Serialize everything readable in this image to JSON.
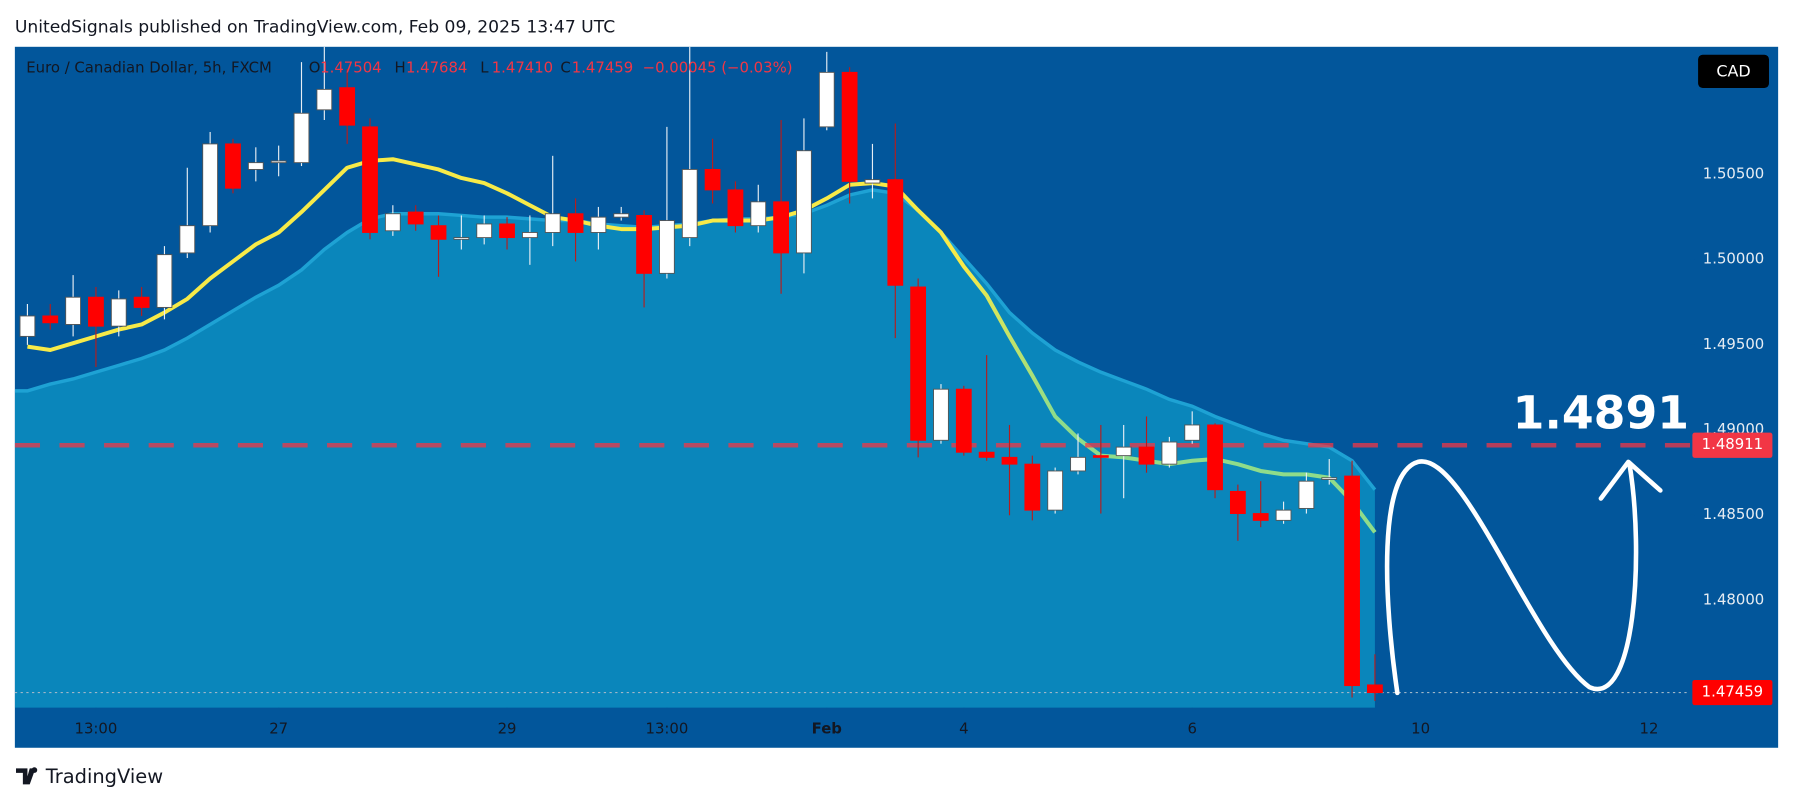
{
  "page": {
    "byline": "UnitedSignals published on TradingView.com, Feb 09, 2025 13:47 UTC",
    "brand": "TradingView"
  },
  "chart_data": {
    "type": "candlestick",
    "legend": {
      "symbol": "Euro / Canadian Dollar, 5h, FXCM",
      "fields": [
        {
          "key": "O",
          "value": "1.47504"
        },
        {
          "key": "H",
          "value": "1.47684"
        },
        {
          "key": "L",
          "value": "1.47410"
        },
        {
          "key": "C",
          "value": "1.47459"
        }
      ],
      "change": "−0.00045 (−0.03%)"
    },
    "currency": "CAD",
    "annotation": "1.4891",
    "level": {
      "value": 1.48911,
      "label": "1.48911"
    },
    "last_price": {
      "value": 1.47459,
      "label": "1.47459"
    },
    "up_color": "#ffffff",
    "down_color": "#ff0000",
    "ohlc": [
      [
        1.4955,
        1.4974,
        1.495,
        1.4967
      ],
      [
        1.4967,
        1.4974,
        1.4959,
        1.4963
      ],
      [
        1.4962,
        1.4991,
        1.4955,
        1.4978
      ],
      [
        1.4978,
        1.4984,
        1.4937,
        1.4961
      ],
      [
        1.4961,
        1.4982,
        1.4955,
        1.4977
      ],
      [
        1.4978,
        1.4984,
        1.4967,
        1.4972
      ],
      [
        1.4972,
        1.5008,
        1.4965,
        1.5003
      ],
      [
        1.5004,
        1.5054,
        1.5001,
        1.502
      ],
      [
        1.502,
        1.5075,
        1.5016,
        1.5068
      ],
      [
        1.5068,
        1.5071,
        1.5039,
        1.5042
      ],
      [
        1.5053,
        1.5066,
        1.5046,
        1.5057
      ],
      [
        1.5057,
        1.5067,
        1.5049,
        1.5058
      ],
      [
        1.5057,
        1.5116,
        1.5055,
        1.5086
      ],
      [
        1.5088,
        1.5125,
        1.5082,
        1.51
      ],
      [
        1.5101,
        1.5112,
        1.5068,
        1.5079
      ],
      [
        1.5078,
        1.5083,
        1.5012,
        1.5016
      ],
      [
        1.5017,
        1.5032,
        1.5014,
        1.5027
      ],
      [
        1.5028,
        1.5032,
        1.5017,
        1.5021
      ],
      [
        1.502,
        1.5026,
        1.499,
        1.5012
      ],
      [
        1.5012,
        1.5026,
        1.5006,
        1.5013
      ],
      [
        1.5013,
        1.5026,
        1.5009,
        1.5021
      ],
      [
        1.5021,
        1.5025,
        1.5006,
        1.5013
      ],
      [
        1.5013,
        1.5026,
        1.4997,
        1.5016
      ],
      [
        1.5016,
        1.5061,
        1.5008,
        1.5027
      ],
      [
        1.5027,
        1.5036,
        1.4999,
        1.5016
      ],
      [
        1.5016,
        1.5031,
        1.5006,
        1.5025
      ],
      [
        1.5025,
        1.5031,
        1.5023,
        1.5027
      ],
      [
        1.5026,
        1.5029,
        1.4972,
        1.4992
      ],
      [
        1.4992,
        1.5078,
        1.4989,
        1.5023
      ],
      [
        1.5013,
        1.5125,
        1.5008,
        1.5053
      ],
      [
        1.5053,
        1.5071,
        1.5033,
        1.5041
      ],
      [
        1.5041,
        1.5046,
        1.5016,
        1.502
      ],
      [
        1.502,
        1.5044,
        1.5016,
        1.5034
      ],
      [
        1.5034,
        1.5082,
        1.498,
        1.5004
      ],
      [
        1.5004,
        1.5083,
        1.4992,
        1.5064
      ],
      [
        1.5078,
        1.5122,
        1.5076,
        1.511
      ],
      [
        1.511,
        1.5113,
        1.5033,
        1.5046
      ],
      [
        1.5045,
        1.5068,
        1.5036,
        1.5047
      ],
      [
        1.5047,
        1.508,
        1.4954,
        1.4985
      ],
      [
        1.4984,
        1.4989,
        1.4884,
        1.4894
      ],
      [
        1.4894,
        1.4927,
        1.4892,
        1.4924
      ],
      [
        1.4924,
        1.4926,
        1.4885,
        1.4887
      ],
      [
        1.4887,
        1.4944,
        1.4882,
        1.4884
      ],
      [
        1.4884,
        1.4903,
        1.485,
        1.488
      ],
      [
        1.488,
        1.4885,
        1.4847,
        1.4853
      ],
      [
        1.4853,
        1.4878,
        1.4851,
        1.4876
      ],
      [
        1.4876,
        1.4898,
        1.4874,
        1.4884
      ],
      [
        1.4885,
        1.4903,
        1.4851,
        1.4884
      ],
      [
        1.4885,
        1.4903,
        1.486,
        1.489
      ],
      [
        1.489,
        1.4908,
        1.4875,
        1.488
      ],
      [
        1.488,
        1.4896,
        1.4878,
        1.4893
      ],
      [
        1.4894,
        1.4911,
        1.4892,
        1.4903
      ],
      [
        1.4903,
        1.4904,
        1.486,
        1.4865
      ],
      [
        1.4864,
        1.4868,
        1.4835,
        1.4851
      ],
      [
        1.4851,
        1.487,
        1.4843,
        1.4847
      ],
      [
        1.4847,
        1.4858,
        1.4845,
        1.4853
      ],
      [
        1.4854,
        1.4875,
        1.4851,
        1.487
      ],
      [
        1.4871,
        1.4883,
        1.4868,
        1.4872
      ],
      [
        1.4873,
        1.4882,
        1.4743,
        1.475
      ],
      [
        1.47504,
        1.47684,
        1.4741,
        1.47459
      ]
    ],
    "ma": {
      "colors": [
        "#f7ea48",
        "#8fdc8a"
      ],
      "values": [
        1.4949,
        1.4947,
        1.4951,
        1.4955,
        1.4959,
        1.4962,
        1.4969,
        1.4977,
        1.4989,
        1.4999,
        1.5009,
        1.5016,
        1.5028,
        1.5041,
        1.5054,
        1.5058,
        1.5059,
        1.5056,
        1.5053,
        1.5048,
        1.5045,
        1.5039,
        1.5032,
        1.5025,
        1.5023,
        1.502,
        1.5018,
        1.5018,
        1.5019,
        1.502,
        1.5023,
        1.5023,
        1.5023,
        1.5025,
        1.5029,
        1.5036,
        1.5044,
        1.5045,
        1.5043,
        1.5029,
        1.5016,
        1.4996,
        1.4979,
        1.4955,
        1.4932,
        1.4908,
        1.4895,
        1.4885,
        1.4884,
        1.4882,
        1.488,
        1.4882,
        1.4883,
        1.488,
        1.4876,
        1.4874,
        1.4874,
        1.4872,
        1.4858,
        1.484
      ]
    },
    "band": {
      "color": "#0a86bb",
      "line_color": "#1ea2d4",
      "values": [
        1.4923,
        1.4927,
        1.493,
        1.4934,
        1.4938,
        1.4942,
        1.4947,
        1.4954,
        1.4962,
        1.497,
        1.4978,
        1.4985,
        1.4994,
        1.5006,
        1.5016,
        1.5024,
        1.5027,
        1.5027,
        1.5027,
        1.5026,
        1.5025,
        1.5025,
        1.5024,
        1.5023,
        1.5023,
        1.5021,
        1.502,
        1.5019,
        1.502,
        1.5021,
        1.5023,
        1.5024,
        1.5024,
        1.5025,
        1.5027,
        1.5032,
        1.5038,
        1.5041,
        1.5039,
        1.5029,
        1.5016,
        1.5001,
        1.4986,
        1.4969,
        1.4957,
        1.4947,
        1.494,
        1.4934,
        1.4929,
        1.4924,
        1.4918,
        1.4914,
        1.4908,
        1.4903,
        1.4898,
        1.4894,
        1.4892,
        1.489,
        1.4882,
        1.4865
      ]
    },
    "ylim": [
      1.4737,
      1.5125
    ],
    "yticks": [
      {
        "value": 1.48,
        "label": "1.48000"
      },
      {
        "value": 1.485,
        "label": "1.48500"
      },
      {
        "value": 1.49,
        "label": "1.49000"
      },
      {
        "value": 1.495,
        "label": "1.49500"
      },
      {
        "value": 1.5,
        "label": "1.50000"
      },
      {
        "value": 1.505,
        "label": "1.50500"
      }
    ],
    "xlim": [
      -0.55,
      72.8
    ],
    "xticks": [
      {
        "value": 3,
        "label": "13:00"
      },
      {
        "value": 11,
        "label": "27"
      },
      {
        "value": 21,
        "label": "29"
      },
      {
        "value": 28,
        "label": "13:00"
      },
      {
        "value": 35,
        "label": "Feb"
      },
      {
        "value": 41,
        "label": "4"
      },
      {
        "value": 51,
        "label": "6"
      },
      {
        "value": 61,
        "label": "10"
      },
      {
        "value": 71,
        "label": "12"
      }
    ],
    "grid": false
  }
}
